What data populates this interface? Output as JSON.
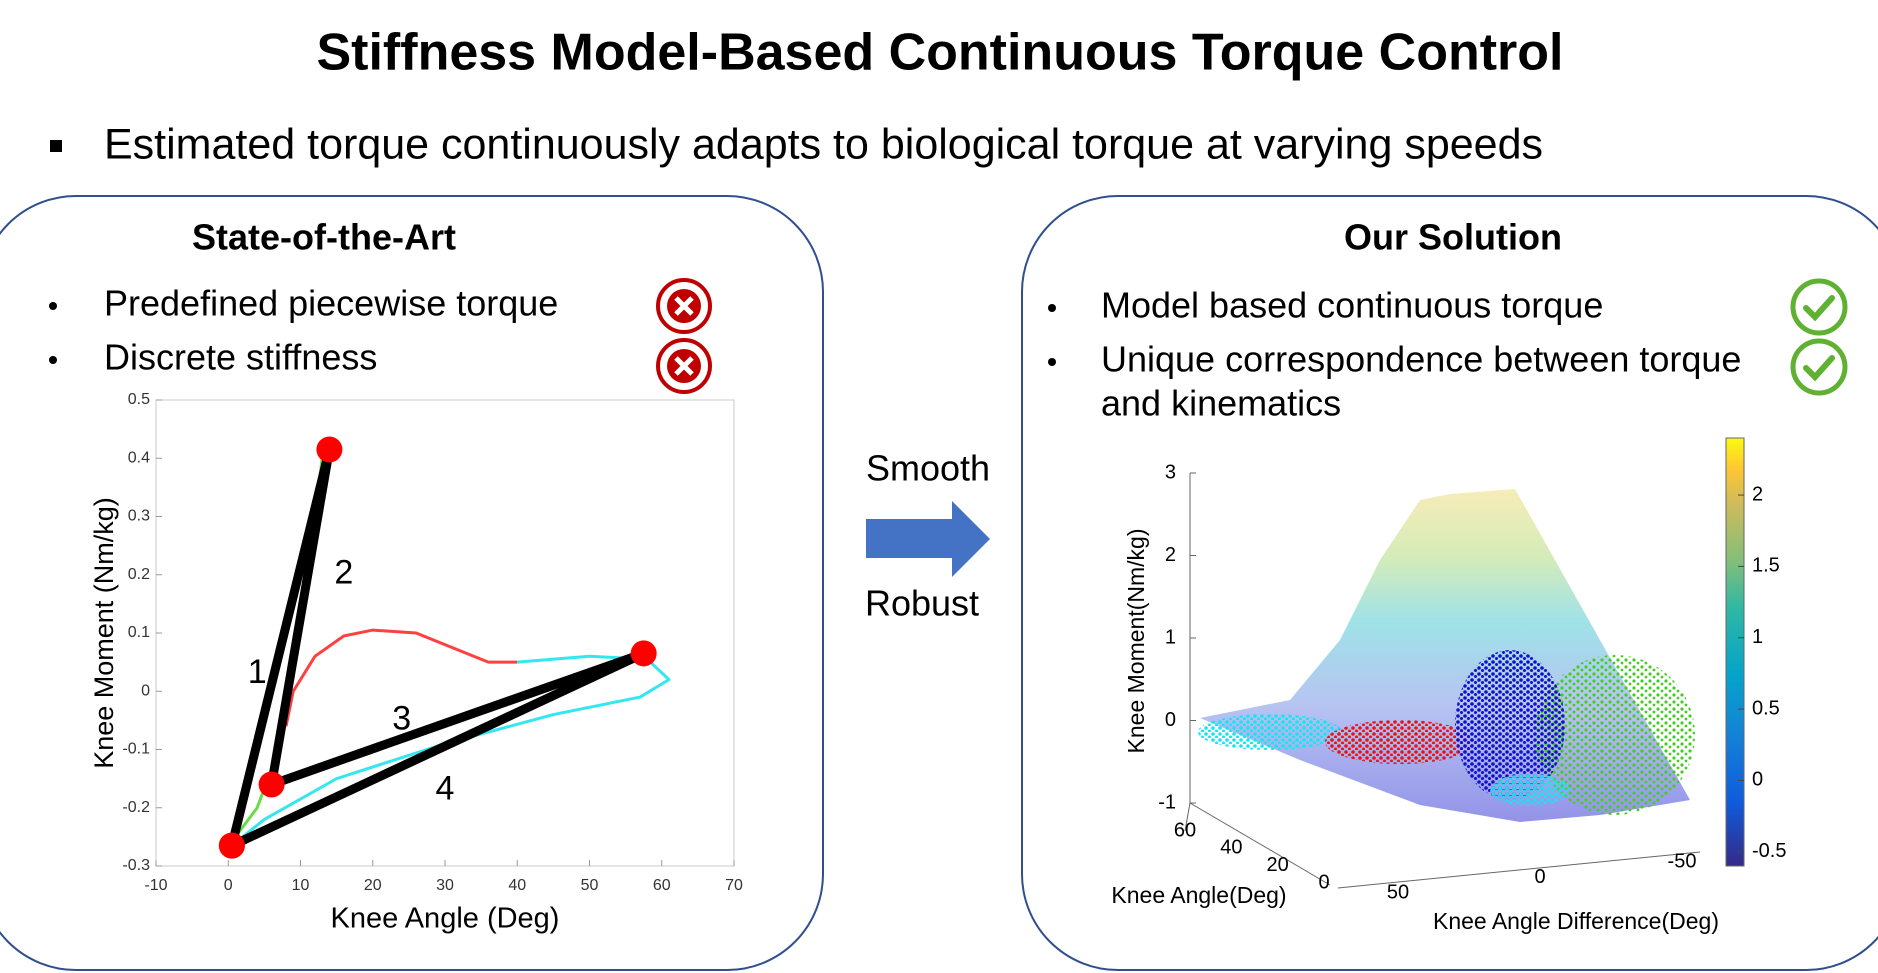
{
  "title": "Stiffness Model-Based Continuous Torque Control",
  "bullet": "Estimated torque continuously adapts to biological torque at varying speeds",
  "left_panel": {
    "heading": "State-of-the-Art",
    "bullets": [
      "Predefined piecewise torque",
      "Discrete stiffness"
    ]
  },
  "right_panel": {
    "heading": "Our Solution",
    "bullets": [
      [
        "Model based continuous torque"
      ],
      [
        "Unique correspondence between torque",
        "and kinematics"
      ]
    ]
  },
  "arrow_labels": [
    "Smooth",
    "Robust"
  ],
  "chart_data": [
    {
      "type": "line",
      "xlabel": "Knee Angle (Deg)",
      "ylabel": "Knee Moment (Nm/kg)",
      "xlim": [
        -10,
        70
      ],
      "ylim": [
        -0.3,
        0.5
      ],
      "xticks": [
        -10,
        0,
        10,
        20,
        30,
        40,
        50,
        60,
        70
      ],
      "yticks": [
        -0.3,
        -0.2,
        -0.1,
        0,
        0.1,
        0.2,
        0.3,
        0.4,
        0.5
      ],
      "series": [
        {
          "color": "#ff4040",
          "x": [
            8,
            9,
            12,
            16,
            20,
            26,
            32,
            36,
            40
          ],
          "values": [
            -0.06,
            0,
            0.06,
            0.095,
            0.105,
            0.1,
            0.07,
            0.05,
            0.05
          ]
        },
        {
          "color": "#33e6f0",
          "x": [
            40,
            50,
            58,
            61,
            57,
            45,
            30,
            15,
            5,
            1
          ],
          "values": [
            0.05,
            0.06,
            0.055,
            0.02,
            -0.01,
            -0.04,
            -0.09,
            -0.15,
            -0.22,
            -0.26
          ]
        },
        {
          "color": "#66dd44",
          "x": [
            1,
            4,
            7,
            10,
            13
          ],
          "values": [
            -0.25,
            -0.2,
            -0.1,
            0.1,
            0.4
          ]
        },
        {
          "color": "#000000",
          "marker_color": "#ff0000",
          "x": [
            0.5,
            14,
            6,
            57.5,
            0.5
          ],
          "values": [
            -0.265,
            0.415,
            -0.16,
            0.065,
            -0.265
          ]
        }
      ],
      "annotations": [
        {
          "text": "1",
          "x": 4,
          "y": 0.03
        },
        {
          "text": "2",
          "x": 16,
          "y": 0.2
        },
        {
          "text": "3",
          "x": 24,
          "y": -0.05
        },
        {
          "text": "4",
          "x": 30,
          "y": -0.17
        }
      ]
    },
    {
      "type": "surface",
      "zlabel": "Knee Moment(Nm/kg)",
      "ylabel": "Knee Angle(Deg)",
      "xlabel": "Knee Angle Difference(Deg)",
      "zlim": [
        -1,
        3
      ],
      "zticks": [
        -1,
        0,
        1,
        2,
        3
      ],
      "yticks": [
        60,
        40,
        20,
        0
      ],
      "xticks": [
        50,
        0,
        -50
      ],
      "clim": [
        -0.6,
        2.4
      ],
      "cticks": [
        -0.5,
        0,
        0.5,
        1,
        1.5,
        2
      ]
    }
  ]
}
